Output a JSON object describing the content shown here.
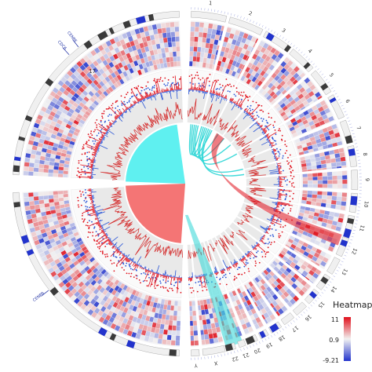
{
  "chart_data": {
    "type": "circos",
    "chromosomes": {
      "left": [
        "17"
      ],
      "right": [
        "1",
        "2",
        "3",
        "4",
        "5",
        "6",
        "7",
        "8",
        "9",
        "10",
        "11",
        "12",
        "13",
        "14",
        "15",
        "16",
        "17",
        "18",
        "19",
        "20",
        "21",
        "22",
        "X",
        "Y"
      ],
      "left_gene_labels": [
        "CDC6",
        "CENPE",
        "CENPB"
      ]
    },
    "tracks": [
      "ideogram",
      "heatmap",
      "scatter",
      "histogram",
      "density",
      "links"
    ],
    "heatmap_scale": {
      "title": "Heatmap",
      "max": "11",
      "mid": "0.9",
      "min": "-9.21",
      "colors": {
        "low": "#2233cc",
        "mid": "#f2f2f2",
        "high": "#e0101b"
      }
    },
    "sectors": {
      "cyan_color": "#5ff0f0",
      "red_color": "#f47575"
    },
    "links": [
      {
        "from": 0.02,
        "to": 0.08,
        "color": "cyan"
      },
      {
        "from": 0.03,
        "to": 0.11,
        "color": "cyan"
      },
      {
        "from": 0.04,
        "to": 0.14,
        "color": "cyan"
      },
      {
        "from": 0.05,
        "to": 0.18,
        "color": "cyan"
      },
      {
        "from": 0.06,
        "to": 0.22,
        "color": "cyan"
      },
      {
        "from": 0.09,
        "to": 0.27,
        "color": "cyan"
      },
      {
        "from": 0.1,
        "to": 0.33,
        "color": "cyan"
      },
      {
        "from": 0.12,
        "to": 0.42,
        "color": "cyan"
      },
      {
        "from": 0.13,
        "to": 0.45,
        "color": "cyan"
      },
      {
        "from": 0.2,
        "to": 0.27,
        "color": "red"
      },
      {
        "from": 0.12,
        "to": 0.47,
        "color": "cyan-wide"
      }
    ]
  }
}
